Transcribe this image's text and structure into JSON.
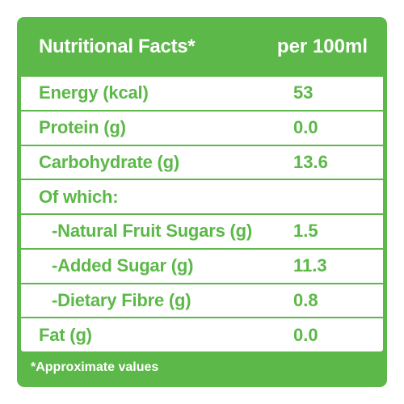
{
  "header": {
    "title": "Nutritional Facts*",
    "per": "per 100ml"
  },
  "rows": [
    {
      "label": "Energy (kcal)",
      "value": "53"
    },
    {
      "label": "Protein (g)",
      "value": "0.0"
    },
    {
      "label": "Carbohydrate (g)",
      "value": "13.6"
    },
    {
      "label": "Of which:",
      "value": ""
    },
    {
      "label": "-Natural Fruit Sugars (g)",
      "value": "1.5"
    },
    {
      "label": "-Added Sugar (g)",
      "value": "11.3"
    },
    {
      "label": "-Dietary Fibre (g)",
      "value": "0.8"
    },
    {
      "label": "Fat (g)",
      "value": "0.0"
    }
  ],
  "footer": {
    "note": "*Approximate values"
  },
  "colors": {
    "brand_green": "#5cb848",
    "background": "#ffffff"
  }
}
